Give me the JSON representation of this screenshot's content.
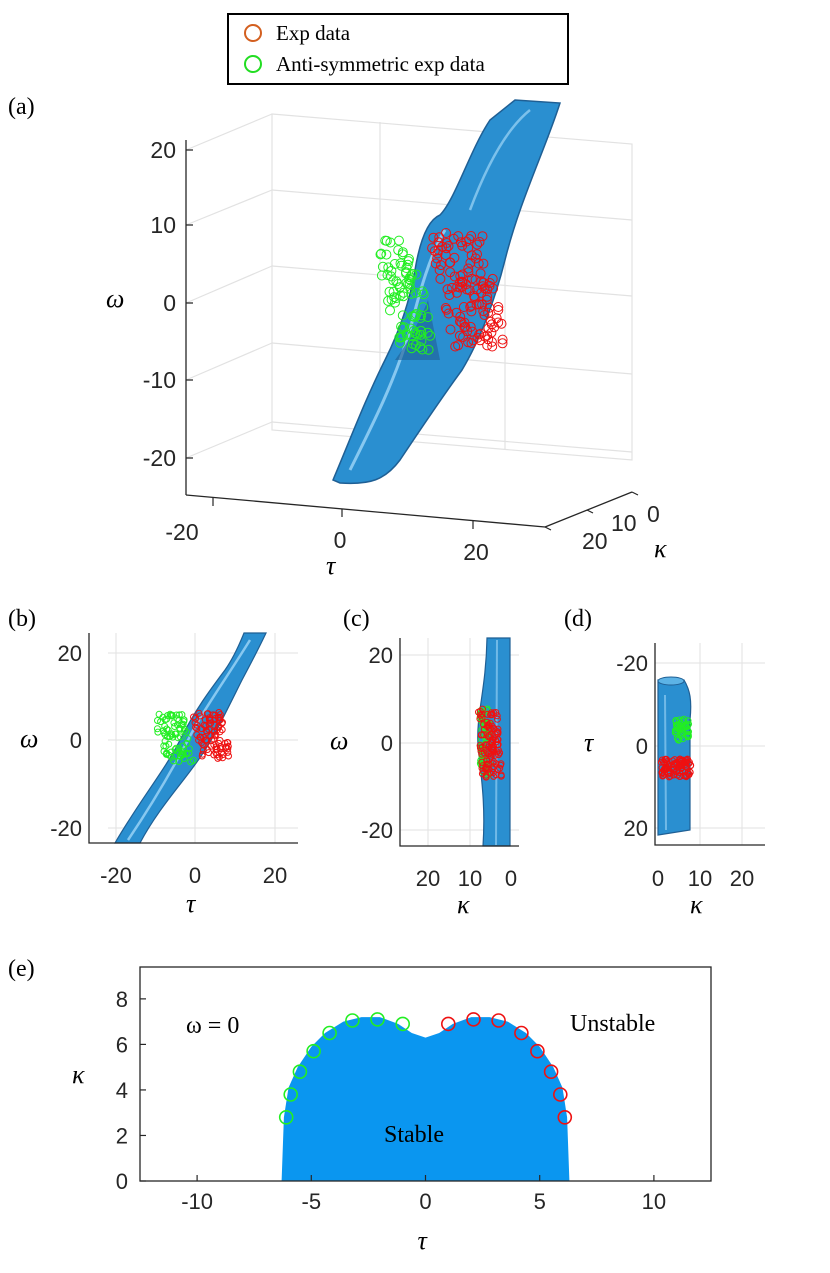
{
  "legend": {
    "entries": [
      {
        "label": "Exp data",
        "color": "#d35f1f"
      },
      {
        "label": "Anti-symmetric exp data",
        "color": "#22dd22"
      }
    ]
  },
  "panel_labels": {
    "a": "(a)",
    "b": "(b)",
    "c": "(c)",
    "d": "(d)",
    "e": "(e)"
  },
  "colors": {
    "surface": "#2a8fd0",
    "surface_dark": "#1f5f94",
    "stable": "#0a96f0",
    "exp": "#ee1111",
    "anti": "#22ee22",
    "grid": "#e2e2e2",
    "axis": "#262626"
  },
  "panel_a": {
    "ylabel": "ω",
    "xlabel": "τ",
    "zlabel": "κ",
    "omega_ticks": [
      "20",
      "10",
      "0",
      "-10",
      "-20"
    ],
    "tau_ticks": [
      "-20",
      "0",
      "20"
    ],
    "kappa_ticks": [
      "20",
      "10",
      "0"
    ]
  },
  "panel_b": {
    "xlabel": "τ",
    "ylabel": "ω",
    "xticks": [
      "-20",
      "0",
      "20"
    ],
    "yticks": [
      "20",
      "0",
      "-20"
    ]
  },
  "panel_c": {
    "xlabel": "κ",
    "ylabel": "ω",
    "xticks": [
      "20",
      "10",
      "0"
    ],
    "yticks": [
      "20",
      "0",
      "-20"
    ]
  },
  "panel_d": {
    "xlabel": "κ",
    "ylabel": "τ",
    "xticks": [
      "0",
      "10",
      "20"
    ],
    "yticks": [
      "-20",
      "0",
      "20"
    ]
  },
  "chart_data": [
    {
      "type": "scatter",
      "panel": "e",
      "xlabel": "τ",
      "ylabel": "κ",
      "xlim": [
        -12.5,
        12.5
      ],
      "ylim": [
        0,
        9.4
      ],
      "xticks": [
        -10,
        -5,
        0,
        5,
        10
      ],
      "yticks": [
        0,
        2,
        4,
        6,
        8
      ],
      "annotations": [
        "ω = 0",
        "Unstable",
        "Stable"
      ],
      "stable_region_boundary": {
        "tau": [
          -6.3,
          -6.2,
          -6.0,
          -5.6,
          -5.0,
          -4.4,
          -3.6,
          -2.8,
          -2.0,
          -1.2,
          -0.6,
          0.0,
          0.6,
          1.2,
          2.0,
          2.8,
          3.6,
          4.4,
          5.0,
          5.6,
          6.0,
          6.2,
          6.3
        ],
        "kappa": [
          0.0,
          2.8,
          4.1,
          5.0,
          5.9,
          6.5,
          7.0,
          7.2,
          7.2,
          6.9,
          6.5,
          6.3,
          6.5,
          6.9,
          7.2,
          7.2,
          7.0,
          6.5,
          5.9,
          5.0,
          4.1,
          2.8,
          0.0
        ]
      },
      "series": [
        {
          "name": "Exp data",
          "x": [
            1.0,
            2.1,
            3.2,
            4.2,
            4.9,
            5.5,
            5.9,
            6.1
          ],
          "y": [
            6.9,
            7.1,
            7.05,
            6.5,
            5.7,
            4.8,
            3.8,
            2.8
          ]
        },
        {
          "name": "Anti-symmetric exp data",
          "x": [
            -1.0,
            -2.1,
            -3.2,
            -4.2,
            -4.9,
            -5.5,
            -5.9,
            -6.1
          ],
          "y": [
            6.9,
            7.1,
            7.05,
            6.5,
            5.7,
            4.8,
            3.8,
            2.8
          ]
        }
      ]
    }
  ]
}
